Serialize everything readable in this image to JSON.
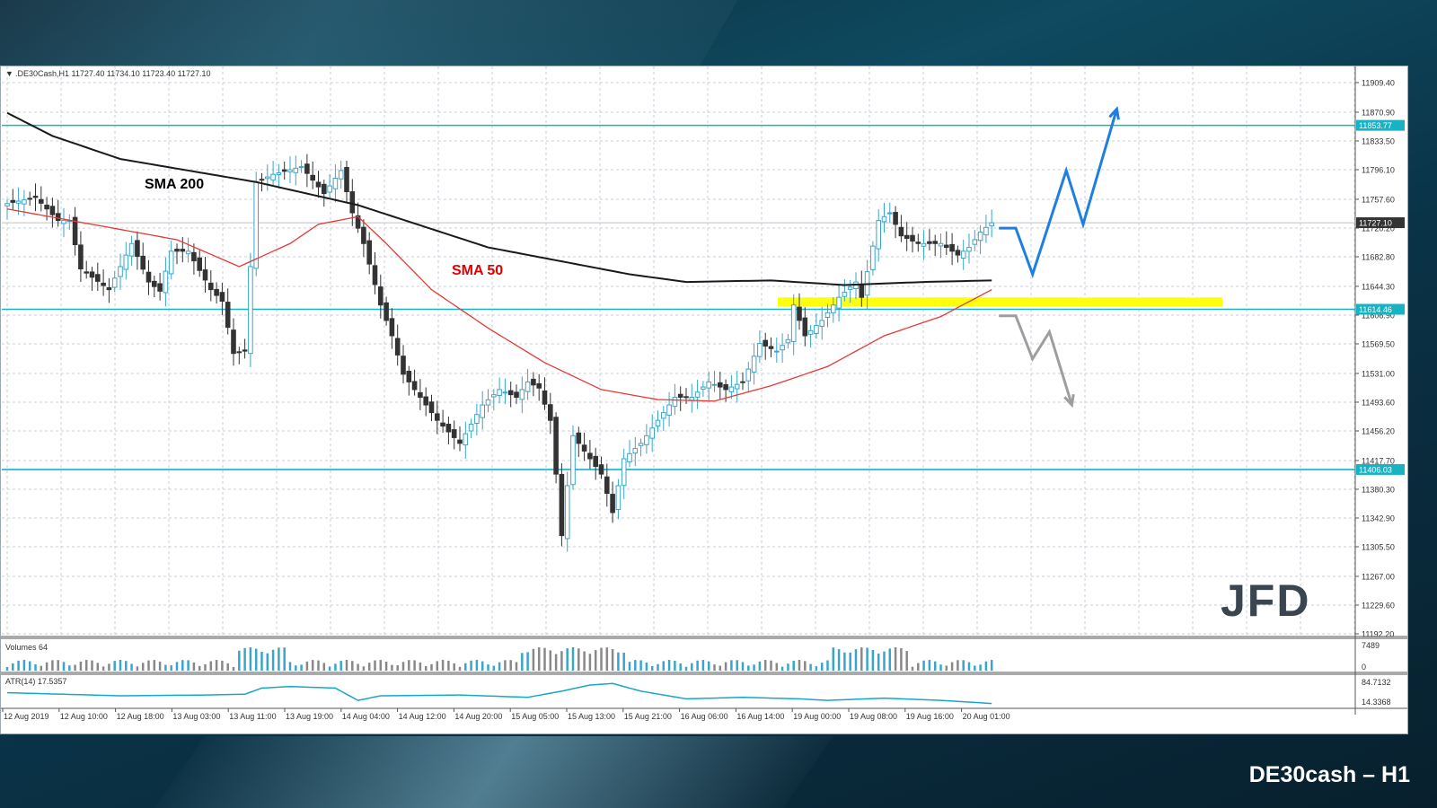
{
  "footer_title": "DE30cash – H1",
  "chart_data": {
    "type": "candlestick",
    "symbol_header": ".DE30Cash,H1  11727.40 11734.10 11723.40 11727.10",
    "logo_text": "JFD",
    "y_ticks": [
      "11909.40",
      "11870.90",
      "11833.50",
      "11796.10",
      "11757.60",
      "11720.20",
      "11682.80",
      "11644.30",
      "11606.90",
      "11569.50",
      "11531.00",
      "11493.60",
      "11456.20",
      "11417.70",
      "11380.30",
      "11342.90",
      "11305.50",
      "11267.00",
      "11229.60",
      "11192.20"
    ],
    "ylim": [
      11192.2,
      11909.4
    ],
    "x_labels": [
      "12 Aug 2019",
      "12 Aug 10:00",
      "12 Aug 18:00",
      "13 Aug 03:00",
      "13 Aug 11:00",
      "13 Aug 19:00",
      "14 Aug 04:00",
      "14 Aug 12:00",
      "14 Aug 20:00",
      "15 Aug 05:00",
      "15 Aug 13:00",
      "15 Aug 21:00",
      "16 Aug 06:00",
      "16 Aug 14:00",
      "19 Aug 00:00",
      "19 Aug 08:00",
      "19 Aug 16:00",
      "20 Aug 01:00"
    ],
    "horizontal_levels": [
      {
        "value": 11853.77,
        "label": "11853.77"
      },
      {
        "value": 11614.46,
        "label": "11614.46"
      },
      {
        "value": 11406.03,
        "label": "11406.03"
      }
    ],
    "current_price": {
      "value": 11727.1,
      "label": "11727.10"
    },
    "sma_labels": {
      "sma200": "SMA 200",
      "sma50": "SMA 50"
    },
    "close_anchors": [
      [
        0,
        11752
      ],
      [
        5,
        11760
      ],
      [
        9,
        11730
      ],
      [
        11,
        11730
      ],
      [
        13,
        11667
      ],
      [
        18,
        11640
      ],
      [
        22,
        11700
      ],
      [
        25,
        11650
      ],
      [
        27,
        11638
      ],
      [
        29,
        11690
      ],
      [
        32,
        11690
      ],
      [
        36,
        11640
      ],
      [
        38,
        11625
      ],
      [
        40,
        11557
      ],
      [
        42,
        11560
      ],
      [
        44,
        11780
      ],
      [
        47,
        11790
      ],
      [
        52,
        11800
      ],
      [
        56,
        11765
      ],
      [
        59,
        11795
      ],
      [
        61,
        11740
      ],
      [
        63,
        11700
      ],
      [
        66,
        11620
      ],
      [
        68,
        11580
      ],
      [
        70,
        11530
      ],
      [
        72,
        11510
      ],
      [
        74,
        11490
      ],
      [
        76,
        11470
      ],
      [
        80,
        11440
      ],
      [
        84,
        11490
      ],
      [
        87,
        11510
      ],
      [
        90,
        11500
      ],
      [
        92,
        11520
      ],
      [
        94,
        11512
      ],
      [
        96,
        11470
      ],
      [
        97,
        11400
      ],
      [
        98,
        11320
      ],
      [
        100,
        11450
      ],
      [
        103,
        11420
      ],
      [
        105,
        11400
      ],
      [
        107,
        11350
      ],
      [
        109,
        11420
      ],
      [
        112,
        11440
      ],
      [
        115,
        11470
      ],
      [
        118,
        11500
      ],
      [
        121,
        11500
      ],
      [
        124,
        11520
      ],
      [
        127,
        11510
      ],
      [
        130,
        11520
      ],
      [
        133,
        11570
      ],
      [
        136,
        11560
      ],
      [
        138,
        11575
      ],
      [
        139,
        11620
      ],
      [
        141,
        11580
      ],
      [
        144,
        11600
      ],
      [
        147,
        11630
      ],
      [
        150,
        11650
      ],
      [
        151,
        11630
      ],
      [
        154,
        11730
      ],
      [
        156,
        11740
      ],
      [
        158,
        11710
      ],
      [
        161,
        11700
      ],
      [
        165,
        11700
      ],
      [
        168,
        11685
      ],
      [
        170,
        11695
      ],
      [
        172,
        11715
      ],
      [
        174,
        11727
      ]
    ],
    "sma200_anchors": [
      [
        0,
        11870
      ],
      [
        8,
        11840
      ],
      [
        20,
        11810
      ],
      [
        44,
        11780
      ],
      [
        62,
        11750
      ],
      [
        85,
        11695
      ],
      [
        110,
        11660
      ],
      [
        120,
        11650
      ],
      [
        135,
        11652
      ],
      [
        148,
        11646
      ],
      [
        162,
        11650
      ],
      [
        174,
        11652
      ]
    ],
    "sma50_anchors": [
      [
        0,
        11745
      ],
      [
        15,
        11725
      ],
      [
        30,
        11705
      ],
      [
        41,
        11670
      ],
      [
        50,
        11700
      ],
      [
        55,
        11725
      ],
      [
        62,
        11735
      ],
      [
        67,
        11700
      ],
      [
        75,
        11640
      ],
      [
        85,
        11590
      ],
      [
        95,
        11545
      ],
      [
        105,
        11510
      ],
      [
        115,
        11497
      ],
      [
        125,
        11495
      ],
      [
        135,
        11515
      ],
      [
        145,
        11540
      ],
      [
        155,
        11580
      ],
      [
        165,
        11605
      ],
      [
        174,
        11640
      ]
    ],
    "volume_label": "Volumes 64",
    "volume_ticks": [
      "7489",
      "0"
    ],
    "atr_label": "ATR(14) 17.5357",
    "atr_ticks": [
      "84.7132",
      "14.3368"
    ],
    "atr_anchors": [
      [
        0,
        28
      ],
      [
        10,
        26
      ],
      [
        20,
        24
      ],
      [
        35,
        25
      ],
      [
        42,
        26
      ],
      [
        45,
        34
      ],
      [
        50,
        36
      ],
      [
        58,
        34
      ],
      [
        62,
        18
      ],
      [
        66,
        24
      ],
      [
        80,
        25
      ],
      [
        92,
        22
      ],
      [
        98,
        30
      ],
      [
        103,
        38
      ],
      [
        107,
        40
      ],
      [
        112,
        30
      ],
      [
        120,
        20
      ],
      [
        130,
        22
      ],
      [
        140,
        20
      ],
      [
        145,
        18
      ],
      [
        155,
        21
      ],
      [
        165,
        18
      ],
      [
        174,
        14
      ]
    ],
    "projection_up": [
      [
        11720,
        0
      ],
      [
        11720,
        1.5
      ],
      [
        11660,
        3
      ],
      [
        11795,
        6
      ],
      [
        11725,
        7.5
      ],
      [
        11875,
        10.5
      ]
    ],
    "projection_down": [
      [
        11606,
        0
      ],
      [
        11606,
        1.5
      ],
      [
        11550,
        3
      ],
      [
        11585,
        4.5
      ],
      [
        11490,
        6.5
      ]
    ]
  }
}
